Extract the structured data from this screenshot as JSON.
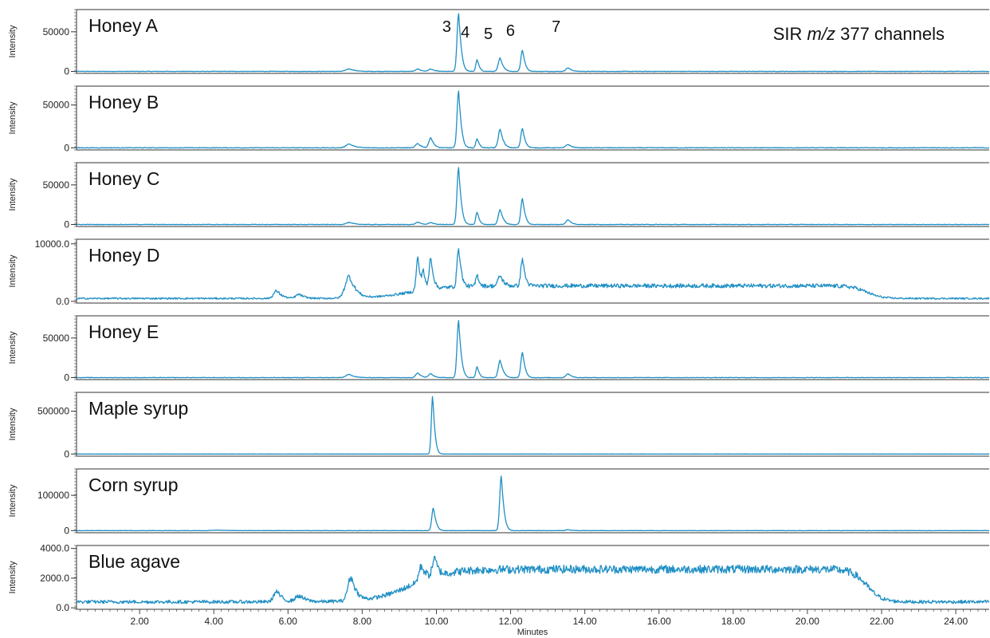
{
  "annotation": {
    "prefix": "SIR ",
    "italic": "m/z",
    "suffix": " 377 channels"
  },
  "chart_data": {
    "type": "line",
    "xlabel": "Minutes",
    "ylabel": "Intensity",
    "xlim": [
      0.3,
      24.9
    ],
    "x_ticks": [
      2,
      4,
      6,
      8,
      10,
      12,
      14,
      16,
      18,
      20,
      22,
      24
    ],
    "x_tick_labels": [
      "2.00",
      "4.00",
      "6.00",
      "8.00",
      "10.00",
      "12.00",
      "14.00",
      "16.00",
      "18.00",
      "20.00",
      "22.00",
      "24.00"
    ],
    "color": "#1f8fc4",
    "peak_labels": [
      {
        "label": "3",
        "x": 10.6
      },
      {
        "label": "4",
        "x": 11.1
      },
      {
        "label": "5",
        "x": 11.72
      },
      {
        "label": "6",
        "x": 12.32
      },
      {
        "label": "7",
        "x": 13.55
      }
    ],
    "panels": [
      {
        "title": "Honey A",
        "ylim": [
          -2500,
          78000
        ],
        "y_ticks": [
          0,
          50000
        ],
        "y_tick_labels": [
          "0",
          "50000"
        ],
        "baseline": 0,
        "plateau": 0,
        "noise": 300,
        "peaks": [
          [
            10.6,
            73000,
            0.06
          ],
          [
            11.1,
            15000,
            0.05
          ],
          [
            11.72,
            17000,
            0.07
          ],
          [
            12.32,
            27000,
            0.06
          ],
          [
            13.55,
            4500,
            0.08
          ],
          [
            7.65,
            3200,
            0.12
          ],
          [
            9.5,
            3200,
            0.08
          ],
          [
            9.85,
            3000,
            0.08
          ]
        ]
      },
      {
        "title": "Honey B",
        "ylim": [
          -2500,
          72000
        ],
        "y_ticks": [
          0,
          50000
        ],
        "y_tick_labels": [
          "0",
          "50000"
        ],
        "baseline": 0,
        "plateau": 0,
        "noise": 400,
        "peaks": [
          [
            10.6,
            66000,
            0.06
          ],
          [
            11.1,
            11000,
            0.05
          ],
          [
            11.72,
            22000,
            0.07
          ],
          [
            12.32,
            23000,
            0.06
          ],
          [
            13.55,
            4000,
            0.08
          ],
          [
            7.65,
            4500,
            0.12
          ],
          [
            9.5,
            5000,
            0.08
          ],
          [
            9.85,
            12000,
            0.07
          ]
        ]
      },
      {
        "title": "Honey C",
        "ylim": [
          -2500,
          78000
        ],
        "y_ticks": [
          0,
          50000
        ],
        "y_tick_labels": [
          "0",
          "50000"
        ],
        "baseline": 0,
        "plateau": 0,
        "noise": 300,
        "peaks": [
          [
            10.6,
            72000,
            0.06
          ],
          [
            11.1,
            16000,
            0.05
          ],
          [
            11.72,
            19000,
            0.07
          ],
          [
            12.32,
            33000,
            0.06
          ],
          [
            13.55,
            6000,
            0.08
          ],
          [
            7.65,
            2500,
            0.12
          ],
          [
            9.5,
            3000,
            0.08
          ],
          [
            9.85,
            2500,
            0.08
          ]
        ]
      },
      {
        "title": "Honey D",
        "ylim": [
          -300,
          10800
        ],
        "y_ticks": [
          0,
          10000
        ],
        "y_tick_labels": [
          "0.0",
          "10000.0"
        ],
        "baseline": 500,
        "plateau": 2200,
        "noise": 350,
        "peaks": [
          [
            10.6,
            6800,
            0.06
          ],
          [
            11.1,
            2000,
            0.05
          ],
          [
            11.72,
            1800,
            0.08
          ],
          [
            12.32,
            4800,
            0.06
          ],
          [
            7.65,
            3800,
            0.15
          ],
          [
            9.5,
            5800,
            0.06
          ],
          [
            9.65,
            3000,
            0.05
          ],
          [
            9.85,
            5600,
            0.06
          ],
          [
            5.7,
            1300,
            0.12
          ],
          [
            6.3,
            700,
            0.12
          ]
        ]
      },
      {
        "title": "Honey E",
        "ylim": [
          -2500,
          78000
        ],
        "y_ticks": [
          0,
          50000
        ],
        "y_tick_labels": [
          "0",
          "50000"
        ],
        "baseline": 0,
        "plateau": 0,
        "noise": 300,
        "peaks": [
          [
            10.6,
            72000,
            0.06
          ],
          [
            11.1,
            14000,
            0.05
          ],
          [
            11.72,
            22000,
            0.07
          ],
          [
            12.32,
            32000,
            0.06
          ],
          [
            13.55,
            5000,
            0.08
          ],
          [
            7.65,
            4000,
            0.12
          ],
          [
            9.5,
            6000,
            0.08
          ],
          [
            9.85,
            5000,
            0.08
          ]
        ]
      },
      {
        "title": "Maple syrup",
        "ylim": [
          -25000,
          720000
        ],
        "y_ticks": [
          0,
          500000
        ],
        "y_tick_labels": [
          "0",
          "500000"
        ],
        "baseline": 0,
        "plateau": 0,
        "noise": 800,
        "peaks": [
          [
            9.9,
            680000,
            0.05
          ]
        ]
      },
      {
        "title": "Corn syrup",
        "ylim": [
          -6000,
          175000
        ],
        "y_ticks": [
          0,
          100000
        ],
        "y_tick_labels": [
          "0",
          "100000"
        ],
        "baseline": 0,
        "plateau": 0,
        "noise": 500,
        "peaks": [
          [
            9.92,
            65000,
            0.06
          ],
          [
            11.75,
            155000,
            0.06
          ],
          [
            13.55,
            2500,
            0.08
          ],
          [
            4.1,
            1200,
            0.2
          ]
        ]
      },
      {
        "title": "Blue agave",
        "ylim": [
          -100,
          4200
        ],
        "y_ticks": [
          0,
          2000,
          4000
        ],
        "y_tick_labels": [
          "0.0",
          "2000.0",
          "4000.0"
        ],
        "baseline": 400,
        "plateau": 2200,
        "noise": 280,
        "peaks": [
          [
            7.7,
            1600,
            0.12
          ],
          [
            9.6,
            1000,
            0.1
          ],
          [
            9.95,
            1200,
            0.08
          ],
          [
            5.7,
            700,
            0.12
          ],
          [
            6.3,
            400,
            0.15
          ]
        ]
      }
    ]
  }
}
